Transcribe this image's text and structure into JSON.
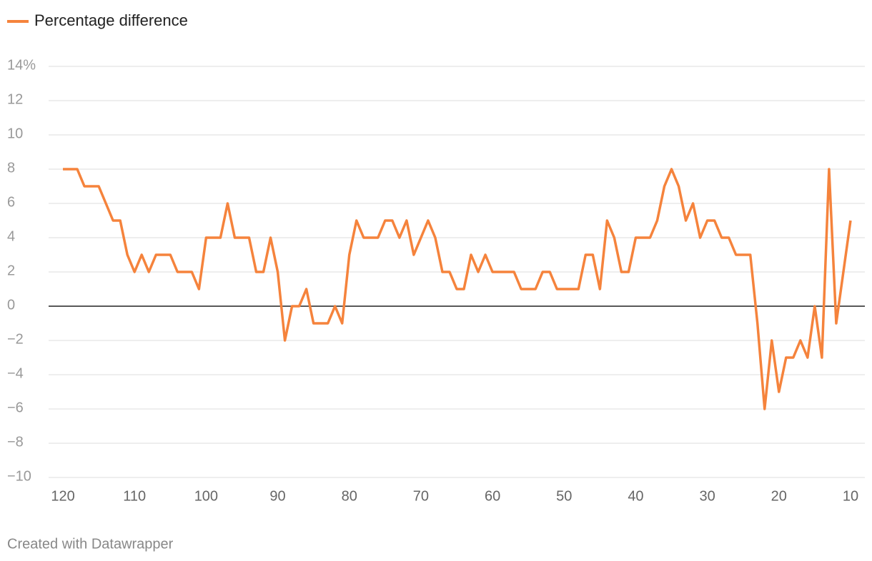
{
  "chart_data": {
    "type": "line",
    "footer": "Created with Datawrapper",
    "x": [
      120,
      119,
      118,
      117,
      116,
      115,
      114,
      113,
      112,
      111,
      110,
      109,
      108,
      107,
      106,
      105,
      104,
      103,
      102,
      101,
      100,
      99,
      98,
      97,
      96,
      95,
      94,
      93,
      92,
      91,
      90,
      89,
      88,
      87,
      86,
      85,
      84,
      83,
      82,
      81,
      80,
      79,
      78,
      77,
      76,
      75,
      74,
      73,
      72,
      71,
      70,
      69,
      68,
      67,
      66,
      65,
      64,
      63,
      62,
      61,
      60,
      59,
      58,
      57,
      56,
      55,
      54,
      53,
      52,
      51,
      50,
      49,
      48,
      47,
      46,
      45,
      44,
      43,
      42,
      41,
      40,
      39,
      38,
      37,
      36,
      35,
      34,
      33,
      32,
      31,
      30,
      29,
      28,
      27,
      26,
      25,
      24,
      23,
      22,
      21,
      20,
      19,
      18,
      17,
      16,
      15,
      14,
      13,
      12,
      11,
      10
    ],
    "series": [
      {
        "name": "Percentage difference",
        "color": "#f5833c",
        "values": [
          8,
          8,
          8,
          7,
          7,
          7,
          6,
          5,
          5,
          3,
          2,
          3,
          2,
          3,
          3,
          3,
          2,
          2,
          2,
          1,
          4,
          4,
          4,
          6,
          4,
          4,
          4,
          2,
          2,
          4,
          2,
          -2,
          0,
          0,
          1,
          -1,
          -1,
          -1,
          0,
          -1,
          3,
          5,
          4,
          4,
          4,
          5,
          5,
          4,
          5,
          3,
          4,
          5,
          4,
          2,
          2,
          1,
          1,
          3,
          2,
          3,
          2,
          2,
          2,
          2,
          1,
          1,
          1,
          2,
          2,
          1,
          1,
          1,
          1,
          3,
          3,
          1,
          5,
          4,
          2,
          2,
          4,
          4,
          4,
          5,
          7,
          8,
          7,
          5,
          6,
          4,
          5,
          5,
          4,
          4,
          3,
          3,
          3,
          -1,
          -6,
          -2,
          -5,
          -3,
          -3,
          -2,
          -3,
          0,
          -3,
          8,
          -1,
          2,
          5
        ]
      }
    ],
    "xlim": [
      122,
      8
    ],
    "xticks": [
      120,
      110,
      100,
      90,
      80,
      70,
      60,
      50,
      40,
      30,
      20,
      10
    ],
    "ylim": [
      -10,
      14
    ],
    "yticks": [
      {
        "value": 14,
        "label": "14%"
      },
      12,
      10,
      8,
      6,
      4,
      2,
      0,
      {
        "value": -2,
        "label": "−2"
      },
      {
        "value": -4,
        "label": "−4"
      },
      {
        "value": -6,
        "label": "−6"
      },
      {
        "value": -8,
        "label": "−8"
      },
      {
        "value": -10,
        "label": "−10"
      }
    ],
    "grid": true,
    "legend": "top-left"
  }
}
